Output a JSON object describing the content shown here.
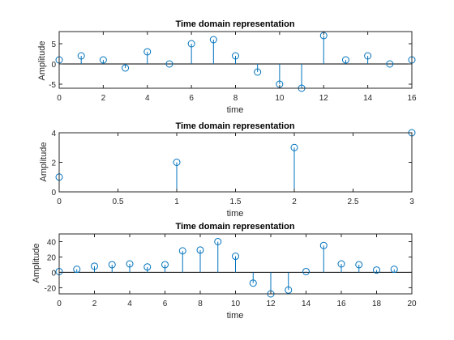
{
  "colors": {
    "stem": "#0072BD",
    "axis": "#262626",
    "baseline": "#000000",
    "background": "#ffffff"
  },
  "chart_data": [
    {
      "type": "stem",
      "title": "Time domain representation",
      "xlabel": "time",
      "ylabel": "Amplitude",
      "xlim": [
        0,
        16
      ],
      "ylim": [
        -6,
        8
      ],
      "xticks": [
        0,
        2,
        4,
        6,
        8,
        10,
        12,
        14,
        16
      ],
      "yticks": [
        -5,
        0,
        5
      ],
      "x": [
        0,
        1,
        2,
        3,
        4,
        5,
        6,
        7,
        8,
        9,
        10,
        11,
        12,
        13,
        14,
        15,
        16
      ],
      "y": [
        1,
        2,
        1,
        -1,
        3,
        0,
        5,
        6,
        2,
        -2,
        -5,
        -6,
        7,
        1,
        2,
        0,
        1
      ],
      "grid": false
    },
    {
      "type": "stem",
      "title": "Time domain representation",
      "xlabel": "time",
      "ylabel": "Amplitude",
      "xlim": [
        0,
        3
      ],
      "ylim": [
        0,
        4
      ],
      "xticks": [
        0,
        0.5,
        1,
        1.5,
        2,
        2.5,
        3
      ],
      "yticks": [
        0,
        2,
        4
      ],
      "x": [
        0,
        1,
        2,
        3
      ],
      "y": [
        1,
        2,
        3,
        4
      ],
      "grid": false
    },
    {
      "type": "stem",
      "title": "Time domain representation",
      "xlabel": "time",
      "ylabel": "Amplitude",
      "xlim": [
        0,
        20
      ],
      "ylim": [
        -28,
        50
      ],
      "xticks": [
        0,
        2,
        4,
        6,
        8,
        10,
        12,
        14,
        16,
        18,
        20
      ],
      "yticks": [
        -20,
        0,
        20,
        40
      ],
      "x": [
        0,
        1,
        2,
        3,
        4,
        5,
        6,
        7,
        8,
        9,
        10,
        11,
        12,
        13,
        14,
        15,
        16,
        17,
        18,
        19
      ],
      "y": [
        1,
        4,
        8,
        10,
        11,
        7,
        10,
        28,
        29,
        40,
        21,
        -14,
        -28,
        -23,
        1,
        35,
        11,
        10,
        3,
        4
      ],
      "grid": false
    }
  ]
}
